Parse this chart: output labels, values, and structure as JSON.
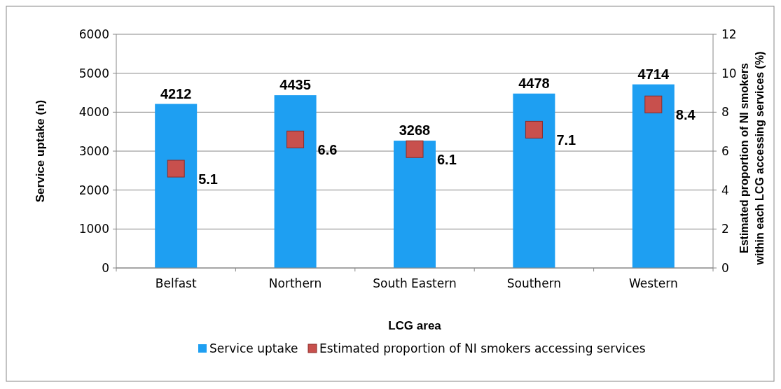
{
  "chart_data": {
    "type": "bar",
    "xlabel": "LCG area",
    "ylabel": "Service uptake (n)",
    "y2label": "Estimated proportion of NI smokers\nwithin each LCG accessing services (%)",
    "categories": [
      "Belfast",
      "Northern",
      "South Eastern",
      "Southern",
      "Western"
    ],
    "series": [
      {
        "name": "Service uptake",
        "color": "#1e9ff2",
        "values": [
          4212,
          4435,
          3268,
          4478,
          4714
        ]
      },
      {
        "name": "Estimated proportion of NI smokers accessing services",
        "type": "scatter",
        "axis": "y2",
        "color": "#c8504d",
        "values": [
          5.1,
          6.6,
          6.1,
          7.1,
          8.4
        ]
      }
    ],
    "ylim": [
      0,
      6000
    ],
    "yticks": [
      0,
      1000,
      2000,
      3000,
      4000,
      5000,
      6000
    ],
    "y2lim": [
      0,
      12
    ],
    "y2ticks": [
      0,
      2,
      4,
      6,
      8,
      10,
      12
    ],
    "grid": "y",
    "legend": "bottom",
    "marker": "square",
    "data_labels": true
  }
}
